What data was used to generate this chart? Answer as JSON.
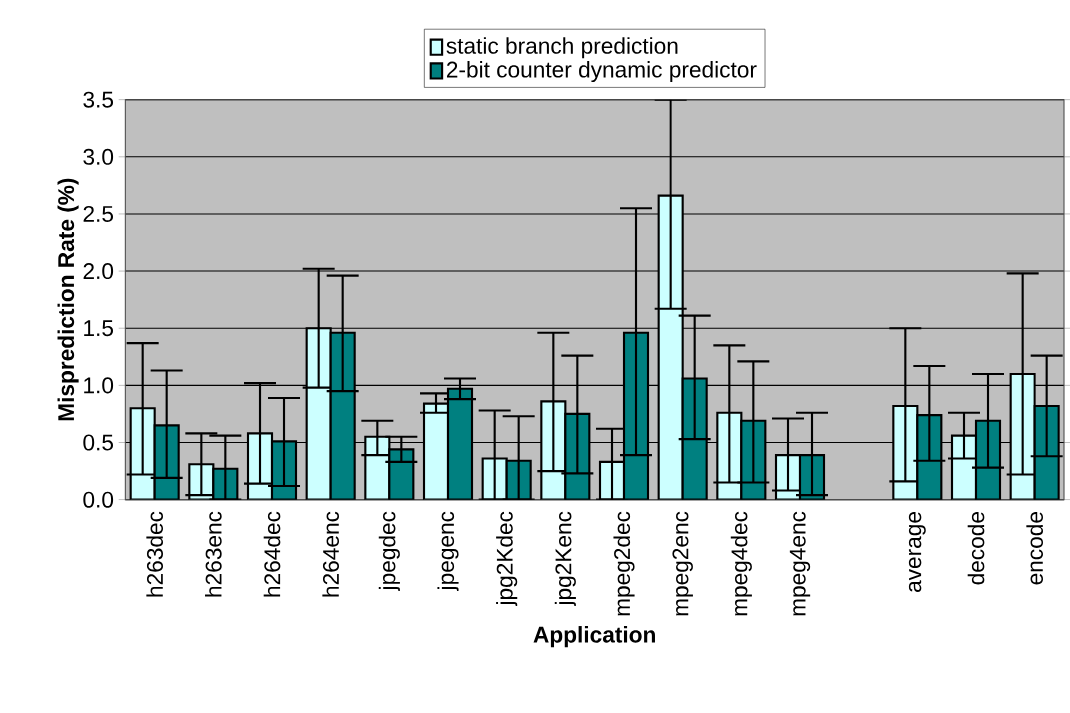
{
  "chart_data": {
    "type": "bar",
    "xlabel": "Application",
    "ylabel": "Misprediction Rate (%)",
    "categories": [
      "h263dec",
      "h263enc",
      "h264dec",
      "h264enc",
      "jpegdec",
      "jpegenc",
      "jpg2Kdec",
      "jpg2Kenc",
      "mpeg2dec",
      "mpeg2enc",
      "mpeg4dec",
      "mpeg4enc",
      null,
      "average",
      "decode",
      "encode"
    ],
    "series": [
      {
        "name": "static branch prediction",
        "color": "#ccffff",
        "values": [
          0.8,
          0.31,
          0.58,
          1.5,
          0.55,
          0.84,
          0.36,
          0.86,
          0.33,
          2.66,
          0.76,
          0.39,
          null,
          0.82,
          0.56,
          1.1
        ],
        "errors": [
          [
            0.22,
            1.37
          ],
          [
            0.04,
            0.58
          ],
          [
            0.14,
            1.02
          ],
          [
            0.98,
            2.02
          ],
          [
            0.39,
            0.69
          ],
          [
            0.76,
            0.93
          ],
          [
            0,
            0.78
          ],
          [
            0.25,
            1.46
          ],
          [
            0,
            0.62
          ],
          [
            1.67,
            3.5
          ],
          [
            0.15,
            1.35
          ],
          [
            0.08,
            0.71
          ],
          null,
          [
            0.16,
            1.5
          ],
          [
            0.36,
            0.76
          ],
          [
            0.22,
            1.98
          ]
        ]
      },
      {
        "name": "2-bit counter dynamic predictor",
        "color": "#008080",
        "values": [
          0.65,
          0.27,
          0.51,
          1.46,
          0.44,
          0.97,
          0.34,
          0.75,
          1.46,
          1.06,
          0.69,
          0.39,
          null,
          0.74,
          0.69,
          0.82
        ],
        "errors": [
          [
            0.19,
            1.13
          ],
          [
            0,
            0.56
          ],
          [
            0.12,
            0.89
          ],
          [
            0.95,
            1.96
          ],
          [
            0.33,
            0.55
          ],
          [
            0.88,
            1.06
          ],
          [
            0,
            0.73
          ],
          [
            0.23,
            1.26
          ],
          [
            0.39,
            2.55
          ],
          [
            0.53,
            1.61
          ],
          [
            0.15,
            1.21
          ],
          [
            0.04,
            0.76
          ],
          null,
          [
            0.34,
            1.17
          ],
          [
            0.28,
            1.1
          ],
          [
            0.38,
            1.26
          ]
        ]
      }
    ],
    "ylim": [
      0,
      3.5
    ],
    "yticks": [
      {
        "value": 0,
        "label": "0.0"
      },
      {
        "value": 0.5,
        "label": "0.5"
      },
      {
        "value": 1,
        "label": "1.0"
      },
      {
        "value": 1.5,
        "label": "1.5"
      },
      {
        "value": 2,
        "label": "2.0"
      },
      {
        "value": 2.5,
        "label": "2.5"
      },
      {
        "value": 3,
        "label": "3.0"
      },
      {
        "value": 3.5,
        "label": "3.5"
      }
    ],
    "grid": "y",
    "legend": "top"
  }
}
